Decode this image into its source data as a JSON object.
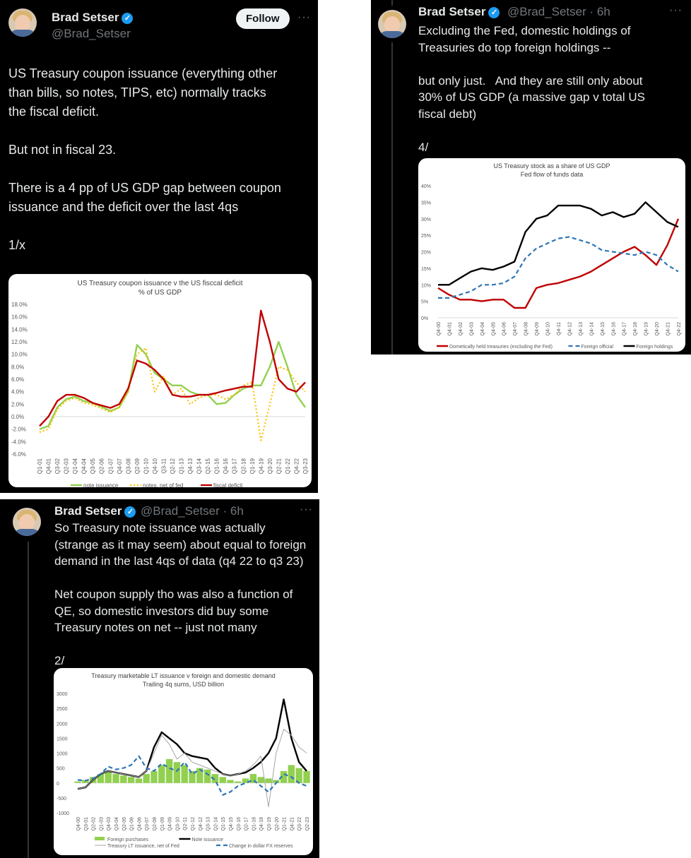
{
  "tweet1": {
    "name": "Brad Setser",
    "handle": "@Brad_Setser",
    "follow_label": "Follow",
    "more": "···",
    "text": "US Treasury coupon issuance (everything other\nthan bills, so notes, TIPS, etc) normally tracks\nthe fiscal deficit.\n\nBut not in fiscal 23.\n\nThere is a 4 pp of US GDP gap between coupon\nissuance and the deficit over the last 4qs\n\n1/x"
  },
  "tweet2": {
    "name": "Brad Setser",
    "handle_time": "@Brad_Setser · 6h",
    "more": "···",
    "text": "Excluding the Fed, domestic holdings of\nTreasuries do top foreign holdings --\n\nbut only just.   And they are still only about\n30% of US GDP (a massive gap v total US\nfiscal debt)\n\n4/"
  },
  "tweet3": {
    "name": "Brad Setser",
    "handle_time": "@Brad_Setser · 6h",
    "more": "···",
    "text": "So Treasury note issuance was actually\n(strange as it may seem) about equal to foreign\ndemand in the last 4qs of data (q4 22 to q3 23)\n\nNet coupon supply tho was also a function of\nQE, so domestic investors did buy some\nTreasury notes on net -- just not many\n\n2/"
  },
  "colors": {
    "background": "#000000",
    "text": "#e7e9ea",
    "muted": "#71767b",
    "verified": "#1d9bf0",
    "green": "#92d050",
    "orange": "#ffc000",
    "red": "#c00000",
    "blue": "#2e75b6",
    "gray": "#a6a6a6"
  },
  "icons": {
    "verified": "verified-badge-icon",
    "more": "more-options-icon",
    "avatar": "avatar-photo"
  },
  "chart_data": [
    {
      "type": "line",
      "title": "US Treasury coupon issuance v the US fisccal deficit",
      "subtitle": "% of US GDP",
      "y_ticks": [
        "18.0%",
        "16.0%",
        "14.0%",
        "12.0%",
        "10.0%",
        "8.0%",
        "6.0%",
        "4.0%",
        "2.0%",
        "0.0%",
        "-2.0%",
        "-4.0%",
        "-6.0%"
      ],
      "ylim": [
        -6,
        18
      ],
      "x": [
        "Q1-01",
        "Q4-01",
        "Q3-02",
        "Q2-03",
        "Q1-04",
        "Q4-04",
        "Q3-05",
        "Q2-06",
        "Q1-07",
        "Q4-07",
        "Q3-08",
        "Q2-09",
        "Q1-10",
        "Q4-10",
        "Q3-11",
        "Q2-12",
        "Q1-13",
        "Q4-13",
        "Q3-14",
        "Q2-15",
        "Q1-16",
        "Q4-16",
        "Q3-17",
        "Q2-18",
        "Q1-19",
        "Q4-19",
        "Q3-20",
        "Q2-21",
        "Q1-22",
        "Q4-22",
        "Q3-23"
      ],
      "series": [
        {
          "name": "note issuance",
          "style": "solid",
          "color": "green",
          "values": [
            -2,
            -1.5,
            1.5,
            2.8,
            3.2,
            2.5,
            2.2,
            1.6,
            0.9,
            1.5,
            4,
            11.5,
            10,
            7,
            6,
            5,
            5,
            4,
            3.5,
            3.5,
            2,
            2.2,
            3.5,
            4.5,
            5,
            5,
            8,
            12,
            8,
            3.5,
            1.5
          ]
        },
        {
          "name": "notes, net of fed",
          "style": "dotted",
          "color": "orange",
          "values": [
            -2.5,
            -2,
            1.2,
            2.5,
            3,
            2.2,
            1.9,
            1.3,
            0.7,
            1.5,
            4,
            10,
            11,
            4,
            6.5,
            3.5,
            4.5,
            2,
            3,
            3.5,
            3.5,
            2.8,
            3.5,
            5,
            5.5,
            -3.8,
            2,
            8,
            7.5,
            5.5,
            4
          ]
        },
        {
          "name": "fiscal deficit",
          "style": "solid",
          "color": "red",
          "values": [
            -1.5,
            0,
            2.5,
            3.5,
            3.5,
            3,
            2.2,
            1.8,
            1.4,
            2,
            4.5,
            9,
            8.5,
            7.5,
            6,
            3.5,
            3.2,
            3.2,
            3.5,
            3.5,
            3.8,
            4.2,
            4.5,
            4.8,
            4.8,
            17,
            12,
            6,
            4.5,
            4,
            5.5
          ]
        }
      ]
    },
    {
      "type": "line",
      "title": "US Treasury stock as a share of US GDP",
      "subtitle": "Fed flow of funds data",
      "y_ticks": [
        "40%",
        "35%",
        "30%",
        "25%",
        "20%",
        "15%",
        "10%",
        "5%",
        "0%"
      ],
      "ylim": [
        0,
        40
      ],
      "x": [
        "Q4-00",
        "Q4-01",
        "Q4-02",
        "Q4-03",
        "Q4-04",
        "Q4-05",
        "Q4-06",
        "Q4-07",
        "Q4-08",
        "Q4-09",
        "Q4-10",
        "Q4-11",
        "Q4-12",
        "Q4-13",
        "Q4-14",
        "Q4-15",
        "Q4-16",
        "Q4-17",
        "Q4-18",
        "Q4-19",
        "Q4-20",
        "Q4-21",
        "Q4-22"
      ],
      "series": [
        {
          "name": "Dometically held treasuries (excluding the Fed)",
          "style": "solid",
          "color": "red",
          "values": [
            9,
            7,
            5.5,
            5.5,
            5,
            5.5,
            5.5,
            3,
            3,
            9,
            10,
            10.5,
            11.5,
            12.5,
            14,
            16,
            18,
            20,
            21.5,
            19,
            16,
            22,
            30
          ]
        },
        {
          "name": "Foreign official",
          "style": "dashed",
          "color": "blue",
          "values": [
            6,
            6,
            7,
            8,
            10,
            10,
            10.5,
            12.5,
            18,
            21,
            22.5,
            24,
            24.5,
            23.5,
            22.5,
            20.5,
            20,
            19.5,
            19,
            20,
            19,
            16,
            14
          ]
        },
        {
          "name": "Foreign holdings",
          "style": "solid",
          "color": "black",
          "values": [
            10,
            10,
            12,
            14,
            15,
            14.5,
            15.5,
            17,
            26,
            30,
            31,
            34,
            34,
            34,
            33,
            31,
            32,
            30.5,
            31.5,
            35,
            32,
            29,
            27.5
          ]
        }
      ]
    },
    {
      "type": "bar+line",
      "title": "Treasury marketable LT issuance v foreign and domestic demand",
      "subtitle": "Trailing 4q sums, USD billion",
      "y_ticks": [
        "3000",
        "2500",
        "2000",
        "1500",
        "1000",
        "500",
        "0",
        "-500",
        "-1000"
      ],
      "ylim": [
        -1000,
        3000
      ],
      "x": [
        "Q4-00",
        "Q3-01",
        "Q2-02",
        "Q1-03",
        "Q4-03",
        "Q3-04",
        "Q2-05",
        "Q1-06",
        "Q4-06",
        "Q3-07",
        "Q2-08",
        "Q1-09",
        "Q4-09",
        "Q3-10",
        "Q2-11",
        "Q1-12",
        "Q4-12",
        "Q3-13",
        "Q2-14",
        "Q1-15",
        "Q4-15",
        "Q3-16",
        "Q2-17",
        "Q1-18",
        "Q4-18",
        "Q3-19",
        "Q2-20",
        "Q1-21",
        "Q4-21",
        "Q3-22",
        "Q2-23"
      ],
      "series": [
        {
          "name": "Foreign purchases",
          "style": "bar",
          "color": "green",
          "values": [
            50,
            100,
            200,
            300,
            400,
            300,
            250,
            200,
            150,
            300,
            400,
            600,
            800,
            700,
            600,
            400,
            500,
            450,
            300,
            200,
            100,
            50,
            150,
            300,
            200,
            150,
            100,
            400,
            600,
            500,
            400
          ]
        },
        {
          "name": "Note issuance",
          "style": "solid",
          "color": "black",
          "values": [
            -200,
            -150,
            100,
            300,
            400,
            350,
            300,
            250,
            200,
            400,
            1200,
            1700,
            1500,
            1300,
            1000,
            900,
            850,
            800,
            500,
            300,
            250,
            300,
            350,
            500,
            700,
            1000,
            1500,
            2800,
            1500,
            700,
            400
          ]
        },
        {
          "name": "Treasury LT issuance, net of Fed",
          "style": "thin",
          "color": "gray",
          "values": [
            -200,
            -150,
            100,
            300,
            400,
            350,
            300,
            250,
            200,
            400,
            1000,
            1600,
            1300,
            800,
            1000,
            700,
            600,
            500,
            400,
            300,
            250,
            300,
            400,
            600,
            900,
            -800,
            1000,
            1800,
            1600,
            1200,
            1000
          ]
        },
        {
          "name": "Change in dollar FX reserves",
          "style": "dashed",
          "color": "blue",
          "values": [
            100,
            80,
            150,
            300,
            550,
            450,
            500,
            600,
            900,
            500,
            400,
            650,
            500,
            400,
            700,
            300,
            450,
            300,
            100,
            -400,
            -300,
            -100,
            0,
            100,
            -100,
            -300,
            0,
            300,
            200,
            0,
            -100
          ]
        }
      ]
    }
  ]
}
